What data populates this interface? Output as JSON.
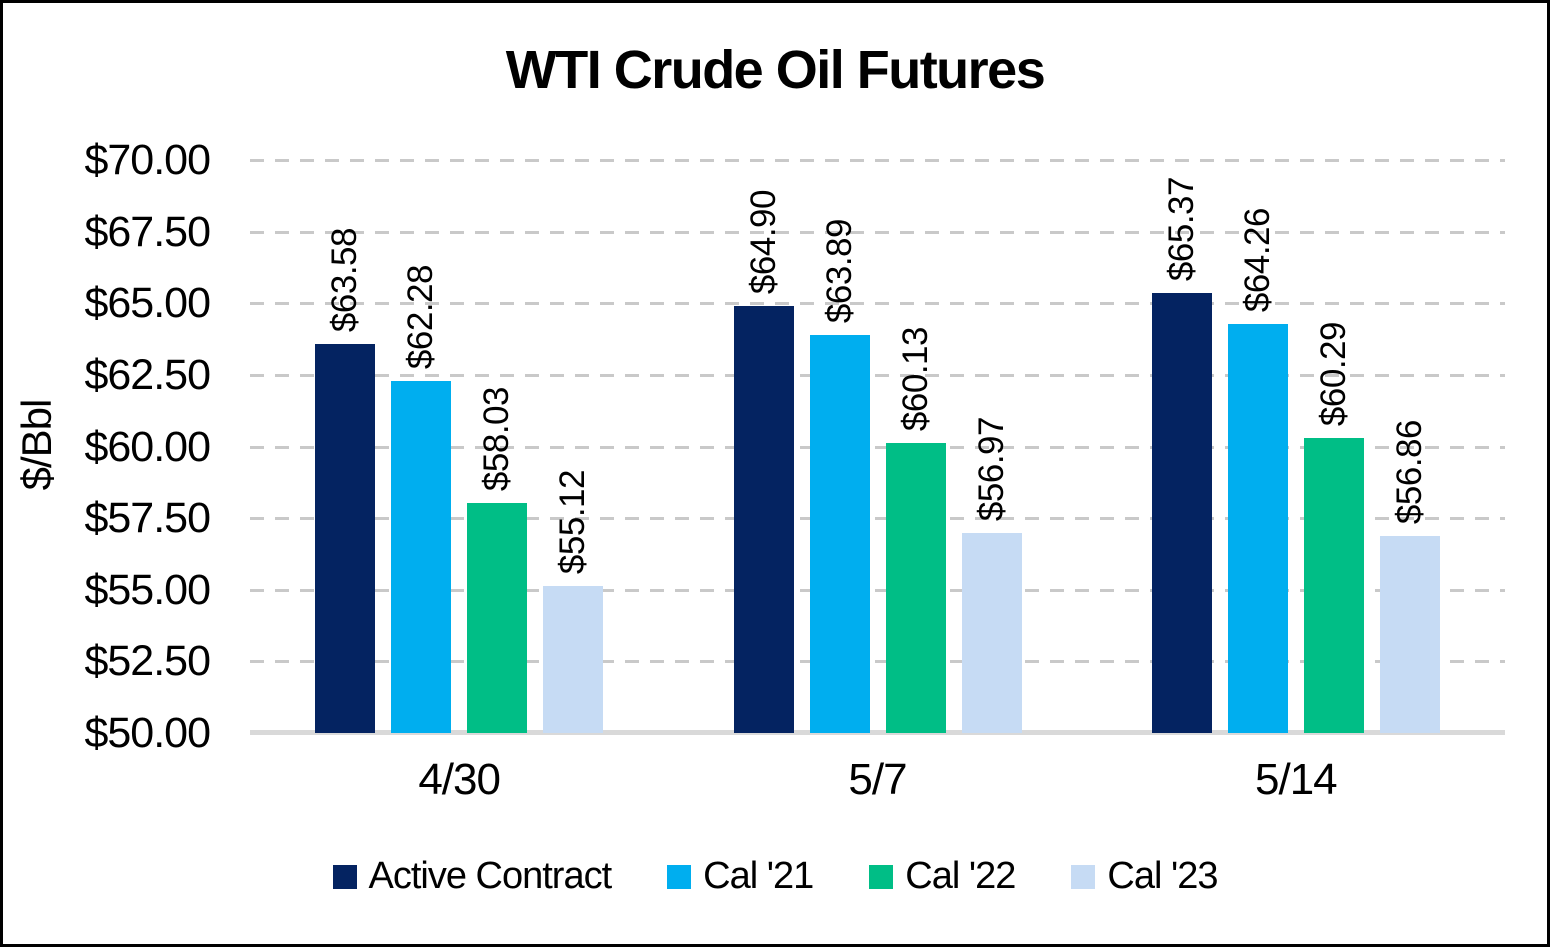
{
  "title": "WTI Crude Oil Futures",
  "colors": {
    "active_contract": "#042361",
    "cal21": "#00AEEF",
    "cal22": "#00BE86",
    "cal23": "#C6DBF4",
    "gridline": "#C9C9C9",
    "baseline": "#D9D9D9",
    "text": "#000000"
  },
  "chart_data": {
    "type": "bar",
    "title": "WTI Crude Oil Futures",
    "xlabel": "",
    "ylabel": "$/Bbl",
    "ylim": [
      50,
      70
    ],
    "grid": "horizontal-dashed",
    "legend_position": "bottom",
    "yticks": [
      {
        "value": 70.0,
        "label": "$70.00"
      },
      {
        "value": 67.5,
        "label": "$67.50"
      },
      {
        "value": 65.0,
        "label": "$65.00"
      },
      {
        "value": 62.5,
        "label": "$62.50"
      },
      {
        "value": 60.0,
        "label": "$60.00"
      },
      {
        "value": 57.5,
        "label": "$57.50"
      },
      {
        "value": 55.0,
        "label": "$55.00"
      },
      {
        "value": 52.5,
        "label": "$52.50"
      },
      {
        "value": 50.0,
        "label": "$50.00"
      }
    ],
    "categories": [
      "4/30",
      "5/7",
      "5/14"
    ],
    "series": [
      {
        "name": "Active Contract",
        "color": "#042361",
        "values": [
          63.58,
          64.9,
          65.37
        ],
        "data_labels": [
          "$63.58",
          "$64.90",
          "$65.37"
        ]
      },
      {
        "name": "Cal '21",
        "color": "#00AEEF",
        "values": [
          62.28,
          63.89,
          64.26
        ],
        "data_labels": [
          "$62.28",
          "$63.89",
          "$64.26"
        ]
      },
      {
        "name": "Cal '22",
        "color": "#00BE86",
        "values": [
          58.03,
          60.13,
          60.29
        ],
        "data_labels": [
          "$58.03",
          "$60.13",
          "$60.29"
        ]
      },
      {
        "name": "Cal '23",
        "color": "#C6DBF4",
        "values": [
          55.12,
          56.97,
          56.86
        ],
        "data_labels": [
          "$55.12",
          "$56.97",
          "$56.86"
        ]
      }
    ]
  }
}
